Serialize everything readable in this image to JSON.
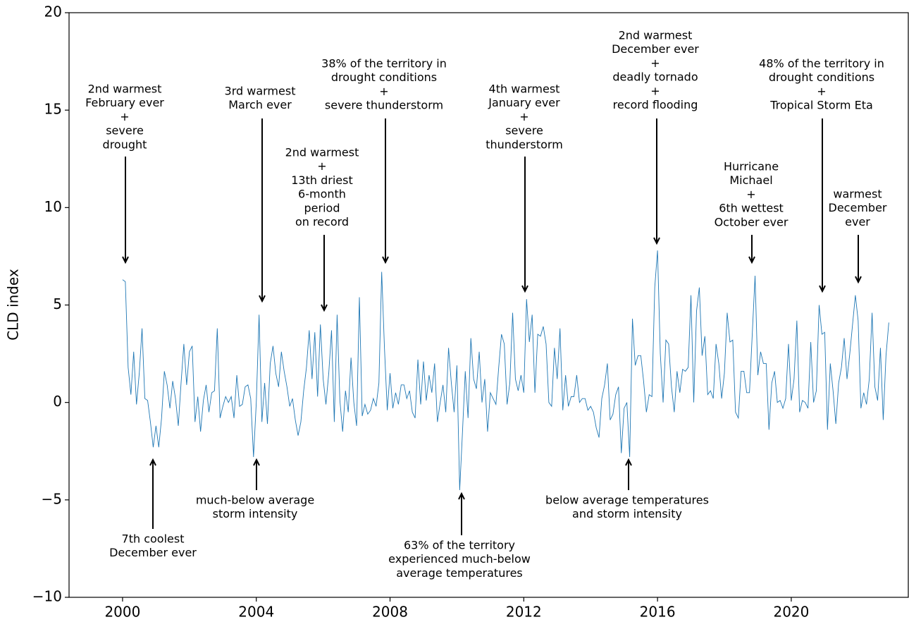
{
  "chart_data": {
    "type": "line",
    "y_label": "CLD index",
    "color": "#1f77b4",
    "xlim": [
      1998.4,
      2023.5
    ],
    "xticks": [
      2000,
      2004,
      2008,
      2012,
      2016,
      2020
    ],
    "ylim": [
      -10,
      20
    ],
    "yticks": [
      {
        "value": -10,
        "label": "−10"
      },
      {
        "value": -5,
        "label": "−5"
      },
      0,
      5,
      10,
      15,
      20
    ],
    "x": [
      2000,
      2000.083,
      2000.167,
      2000.25,
      2000.333,
      2000.417,
      2000.5,
      2000.583,
      2000.667,
      2000.75,
      2000.833,
      2000.917,
      2001,
      2001.083,
      2001.167,
      2001.25,
      2001.333,
      2001.417,
      2001.5,
      2001.583,
      2001.667,
      2001.75,
      2001.833,
      2001.917,
      2002,
      2002.083,
      2002.167,
      2002.25,
      2002.333,
      2002.417,
      2002.5,
      2002.583,
      2002.667,
      2002.75,
      2002.833,
      2002.917,
      2003,
      2003.083,
      2003.167,
      2003.25,
      2003.333,
      2003.417,
      2003.5,
      2003.583,
      2003.667,
      2003.75,
      2003.833,
      2003.917,
      2004,
      2004.083,
      2004.167,
      2004.25,
      2004.333,
      2004.417,
      2004.5,
      2004.583,
      2004.667,
      2004.75,
      2004.833,
      2004.917,
      2005,
      2005.083,
      2005.167,
      2005.25,
      2005.333,
      2005.417,
      2005.5,
      2005.583,
      2005.667,
      2005.75,
      2005.833,
      2005.917,
      2006,
      2006.083,
      2006.167,
      2006.25,
      2006.333,
      2006.417,
      2006.5,
      2006.583,
      2006.667,
      2006.75,
      2006.833,
      2006.917,
      2007,
      2007.083,
      2007.167,
      2007.25,
      2007.333,
      2007.417,
      2007.5,
      2007.583,
      2007.667,
      2007.75,
      2007.833,
      2007.917,
      2008,
      2008.083,
      2008.167,
      2008.25,
      2008.333,
      2008.417,
      2008.5,
      2008.583,
      2008.667,
      2008.75,
      2008.833,
      2008.917,
      2009,
      2009.083,
      2009.167,
      2009.25,
      2009.333,
      2009.417,
      2009.5,
      2009.583,
      2009.667,
      2009.75,
      2009.833,
      2009.917,
      2010,
      2010.083,
      2010.167,
      2010.25,
      2010.333,
      2010.417,
      2010.5,
      2010.583,
      2010.667,
      2010.75,
      2010.833,
      2010.917,
      2011,
      2011.083,
      2011.167,
      2011.25,
      2011.333,
      2011.417,
      2011.5,
      2011.583,
      2011.667,
      2011.75,
      2011.833,
      2011.917,
      2012,
      2012.083,
      2012.167,
      2012.25,
      2012.333,
      2012.417,
      2012.5,
      2012.583,
      2012.667,
      2012.75,
      2012.833,
      2012.917,
      2013,
      2013.083,
      2013.167,
      2013.25,
      2013.333,
      2013.417,
      2013.5,
      2013.583,
      2013.667,
      2013.75,
      2013.833,
      2013.917,
      2014,
      2014.083,
      2014.167,
      2014.25,
      2014.333,
      2014.417,
      2014.5,
      2014.583,
      2014.667,
      2014.75,
      2014.833,
      2014.917,
      2015,
      2015.083,
      2015.167,
      2015.25,
      2015.333,
      2015.417,
      2015.5,
      2015.583,
      2015.667,
      2015.75,
      2015.833,
      2015.917,
      2016,
      2016.083,
      2016.167,
      2016.25,
      2016.333,
      2016.417,
      2016.5,
      2016.583,
      2016.667,
      2016.75,
      2016.833,
      2016.917,
      2017,
      2017.083,
      2017.167,
      2017.25,
      2017.333,
      2017.417,
      2017.5,
      2017.583,
      2017.667,
      2017.75,
      2017.833,
      2017.917,
      2018,
      2018.083,
      2018.167,
      2018.25,
      2018.333,
      2018.417,
      2018.5,
      2018.583,
      2018.667,
      2018.75,
      2018.833,
      2018.917,
      2019,
      2019.083,
      2019.167,
      2019.25,
      2019.333,
      2019.417,
      2019.5,
      2019.583,
      2019.667,
      2019.75,
      2019.833,
      2019.917,
      2020,
      2020.083,
      2020.167,
      2020.25,
      2020.333,
      2020.417,
      2020.5,
      2020.583,
      2020.667,
      2020.75,
      2020.833,
      2020.917,
      2021,
      2021.083,
      2021.167,
      2021.25,
      2021.333,
      2021.417,
      2021.5,
      2021.583,
      2021.667,
      2021.75,
      2021.833,
      2021.917,
      2022,
      2022.083,
      2022.167,
      2022.25,
      2022.333,
      2022.417,
      2022.5,
      2022.583,
      2022.667,
      2022.75,
      2022.833,
      2022.917
    ],
    "values": [
      6.3,
      6.2,
      1.8,
      0.4,
      2.6,
      -0.1,
      1.5,
      3.8,
      0.2,
      0.1,
      -1.0,
      -2.3,
      -1.2,
      -2.3,
      -0.8,
      1.6,
      0.9,
      -0.3,
      1.1,
      0.2,
      -1.2,
      1.0,
      3.0,
      0.9,
      2.6,
      2.9,
      -1.0,
      0.3,
      -1.5,
      0.1,
      0.9,
      -0.5,
      0.5,
      0.6,
      3.8,
      -0.8,
      -0.2,
      0.3,
      0.0,
      0.3,
      -0.8,
      1.4,
      -0.2,
      -0.1,
      0.8,
      0.9,
      0.2,
      -2.8,
      0.0,
      4.5,
      -1.0,
      1.0,
      -1.1,
      2.0,
      2.9,
      1.5,
      0.8,
      2.6,
      1.6,
      0.8,
      -0.2,
      0.2,
      -0.9,
      -1.7,
      -1.0,
      0.6,
      1.8,
      3.7,
      1.2,
      3.6,
      0.3,
      4.0,
      1.2,
      -0.1,
      1.5,
      3.7,
      -1.0,
      4.5,
      0.1,
      -1.5,
      0.6,
      -0.5,
      2.3,
      0.0,
      -1.2,
      5.4,
      -0.7,
      -0.1,
      -0.6,
      -0.4,
      0.2,
      -0.2,
      1.0,
      6.7,
      2.8,
      -0.4,
      1.5,
      -0.3,
      0.5,
      -0.1,
      0.9,
      0.9,
      0.2,
      0.6,
      -0.5,
      -0.8,
      2.2,
      -0.1,
      2.1,
      0.1,
      1.4,
      0.5,
      2.0,
      -1.0,
      0.0,
      0.9,
      -0.5,
      2.8,
      1.0,
      -0.5,
      1.9,
      -4.5,
      -1.5,
      1.6,
      -0.8,
      3.3,
      1.2,
      0.7,
      2.6,
      0.0,
      1.2,
      -1.5,
      0.5,
      0.2,
      -0.1,
      1.8,
      3.5,
      3.0,
      -0.1,
      1.0,
      4.6,
      1.2,
      0.6,
      1.4,
      0.5,
      5.3,
      3.1,
      4.5,
      0.5,
      3.5,
      3.4,
      3.9,
      3.0,
      0.0,
      -0.2,
      2.8,
      1.2,
      3.8,
      -0.4,
      1.4,
      -0.2,
      0.3,
      0.3,
      1.4,
      0.0,
      0.2,
      0.2,
      -0.4,
      -0.2,
      -0.5,
      -1.3,
      -1.8,
      0.2,
      0.9,
      2.0,
      -0.9,
      -0.6,
      0.4,
      0.8,
      -2.6,
      -0.3,
      0.0,
      -2.8,
      4.3,
      1.9,
      2.4,
      2.4,
      1.1,
      -0.5,
      0.4,
      0.3,
      5.9,
      7.8,
      2.5,
      0.0,
      3.2,
      3.0,
      0.8,
      -0.5,
      1.6,
      0.5,
      1.7,
      1.6,
      1.8,
      5.5,
      0.0,
      4.7,
      5.9,
      2.4,
      3.4,
      0.4,
      0.6,
      0.2,
      3.0,
      2.0,
      0.2,
      1.5,
      4.6,
      3.1,
      3.2,
      -0.5,
      -0.8,
      1.6,
      1.6,
      0.5,
      0.5,
      3.5,
      6.5,
      1.4,
      2.6,
      2.0,
      2.0,
      -1.4,
      1.0,
      1.6,
      0.0,
      0.1,
      -0.3,
      0.2,
      3.0,
      0.1,
      1.2,
      4.2,
      -0.5,
      0.1,
      0.0,
      -0.3,
      3.1,
      0.0,
      0.6,
      5.0,
      3.5,
      3.6,
      -1.4,
      2.0,
      0.6,
      -1.1,
      1.0,
      1.8,
      3.3,
      1.2,
      2.5,
      4.0,
      5.5,
      4.2,
      -0.3,
      0.5,
      -0.1,
      1.2,
      4.6,
      0.8,
      0.1,
      2.8,
      -0.9,
      2.4,
      4.1
    ],
    "annotations": [
      {
        "lines": [
          "2nd warmest",
          "February ever",
          "+",
          "severe",
          "drought"
        ]
      },
      {
        "lines": [
          "3rd warmest",
          "March ever"
        ]
      },
      {
        "lines": [
          "2nd warmest",
          "+",
          "13th driest",
          "6-month",
          "period",
          "on record"
        ]
      },
      {
        "lines": [
          "38% of the territory in",
          "drought conditions",
          "+",
          "severe thunderstorm"
        ]
      },
      {
        "lines": [
          "4th warmest",
          "January ever",
          "+",
          "severe",
          "thunderstorm"
        ]
      },
      {
        "lines": [
          "2nd warmest",
          "December ever",
          "+",
          "deadly tornado",
          "+",
          "record flooding"
        ]
      },
      {
        "lines": [
          "Hurricane",
          "Michael",
          "+",
          "6th wettest",
          "October ever"
        ]
      },
      {
        "lines": [
          "48% of the territory in",
          "drought conditions",
          "+",
          "Tropical Storm Eta"
        ]
      },
      {
        "lines": [
          "warmest",
          "December",
          "ever"
        ]
      },
      {
        "lines": [
          "7th coolest",
          "December ever"
        ]
      },
      {
        "lines": [
          "much-below average",
          "storm intensity"
        ]
      },
      {
        "lines": [
          "63% of the territory",
          "experienced much-below",
          "average temperatures"
        ]
      },
      {
        "lines": [
          "below average temperatures",
          "and storm intensity"
        ]
      }
    ]
  }
}
